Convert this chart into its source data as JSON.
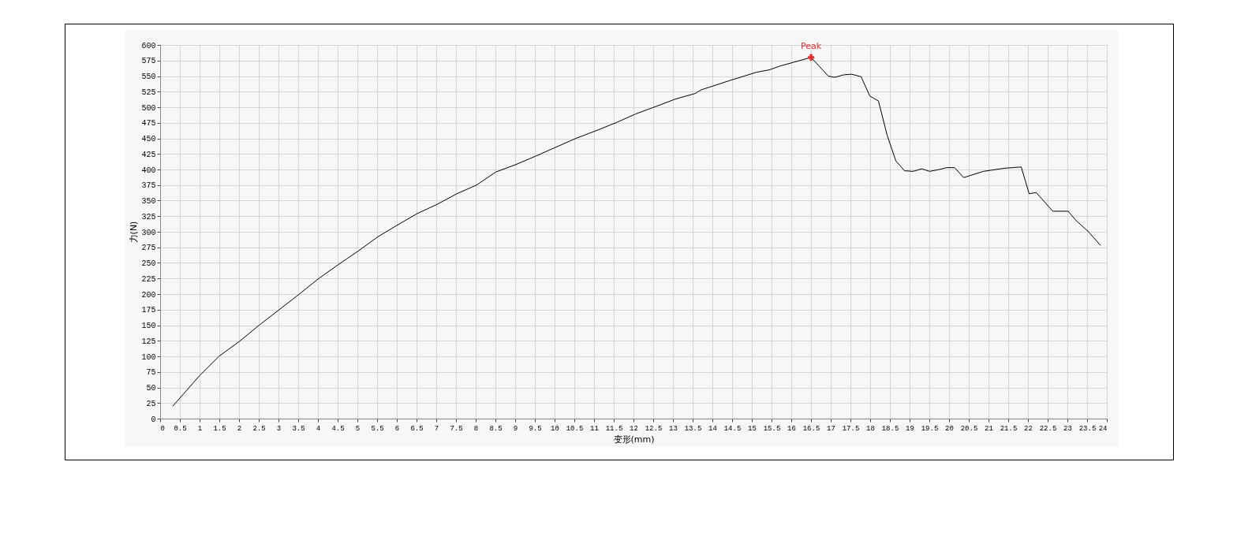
{
  "chart_data": {
    "type": "line",
    "xlabel": "变形(mm)",
    "ylabel": "力(N)",
    "xlim": [
      0,
      24
    ],
    "xticks": [
      0,
      0.5,
      1,
      1.5,
      2,
      2.5,
      3,
      3.5,
      4,
      4.5,
      5,
      5.5,
      6,
      6.5,
      7,
      7.5,
      8,
      8.5,
      9,
      9.5,
      10,
      10.5,
      11,
      11.5,
      12,
      12.5,
      13,
      13.5,
      14,
      14.5,
      15,
      15.5,
      16,
      16.5,
      17,
      17.5,
      18,
      18.5,
      19,
      19.5,
      20,
      20.5,
      21,
      21.5,
      22,
      22.5,
      23,
      23.5,
      24
    ],
    "ylim": [
      0,
      600
    ],
    "yticks": [
      0,
      25,
      50,
      75,
      100,
      125,
      150,
      175,
      200,
      225,
      250,
      275,
      300,
      325,
      350,
      375,
      400,
      425,
      450,
      475,
      500,
      525,
      550,
      575,
      600
    ],
    "grid": true,
    "series": [
      {
        "type": "line",
        "color": "#000000",
        "x": [
          0.32,
          1.0,
          1.49,
          2.01,
          2.51,
          3.02,
          3.51,
          4.02,
          4.51,
          5.02,
          5.52,
          6.02,
          6.51,
          7.02,
          7.52,
          8.02,
          8.51,
          9.02,
          9.54,
          10.04,
          10.54,
          11.04,
          11.55,
          12.05,
          12.56,
          13.06,
          13.56,
          13.72,
          14.45,
          15.11,
          15.44,
          15.71,
          16.5,
          16.94,
          17.1,
          17.33,
          17.53,
          17.77,
          17.99,
          18.21,
          18.43,
          18.65,
          18.87,
          19.08,
          19.31,
          19.51,
          19.75,
          19.94,
          20.14,
          20.37,
          20.87,
          21.4,
          21.83,
          22.03,
          22.21,
          22.63,
          23.02,
          23.22,
          23.52,
          23.84
        ],
        "values": [
          20,
          69,
          100,
          124,
          150,
          175,
          199,
          225,
          247,
          269,
          292,
          311,
          329,
          344,
          361,
          375,
          396,
          408,
          422,
          436,
          450,
          462,
          475,
          489,
          501,
          513,
          522,
          528,
          543,
          556,
          560,
          566,
          580,
          550,
          548,
          552,
          553,
          549,
          518,
          510,
          455,
          414,
          398,
          397,
          401,
          397,
          400,
          403,
          403,
          387,
          397,
          402,
          404,
          361,
          363,
          333,
          333,
          318,
          301,
          278
        ]
      },
      {
        "type": "scatter",
        "color": "#e03030",
        "marker": "cross",
        "x": [
          16.5
        ],
        "values": [
          580
        ]
      }
    ],
    "annotations": [
      {
        "text": "Peak",
        "x": 16.5,
        "y": 580
      }
    ]
  }
}
